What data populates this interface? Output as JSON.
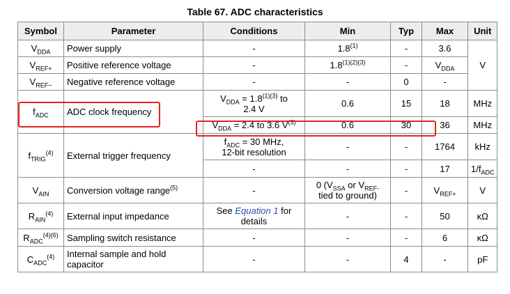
{
  "title": "Table 67. ADC characteristics",
  "headers": {
    "symbol": "Symbol",
    "parameter": "Parameter",
    "conditions": "Conditions",
    "min": "Min",
    "typ": "Typ",
    "max": "Max",
    "unit": "Unit"
  },
  "rows": {
    "vdda": {
      "sym": "V",
      "sub": "DDA",
      "param": "Power supply",
      "cond": "-",
      "min": "1.8",
      "min_sup": "(1)",
      "typ": "-",
      "max": "3.6"
    },
    "vrefp": {
      "sym": "V",
      "sub": "REF+",
      "param": "Positive reference voltage",
      "cond": "-",
      "min": "1.8",
      "min_sup": "(1)(2)(3)",
      "typ": "-",
      "max_sym": "V",
      "max_sub": "DDA"
    },
    "vrefm": {
      "sym": "V",
      "sub": "REF−",
      "param": "Negative reference voltage",
      "cond": "-",
      "min": "-",
      "typ": "0",
      "max": "-"
    },
    "volt_unit": "V",
    "fadc": {
      "sym": "f",
      "sub": "ADC",
      "param": "ADC clock frequency",
      "cond1_sym": "V",
      "cond1_sub": "DDA",
      "cond1_a": " = 1.8",
      "cond1_sup": "(1)(3)",
      "cond1_b": " to",
      "cond1_c": "2.4 V",
      "min1": "0.6",
      "typ1": "15",
      "max1": "18",
      "unit1": "MHz",
      "cond2_sym": "V",
      "cond2_sub": "DDA",
      "cond2_a": " = 2.4 to 3.6 V",
      "cond2_sup": "(3)",
      "min2": "0.6",
      "typ2": "30",
      "max2": "36",
      "unit2": "MHz"
    },
    "ftrig": {
      "sym": "f",
      "sub": "TRIG",
      "sup": "(4)",
      "param": "External trigger frequency",
      "cond1_sym": "f",
      "cond1_sub": "ADC",
      "cond1_a": " = 30 MHz,",
      "cond1_b": "12-bit resolution",
      "min1": "-",
      "typ1": "-",
      "max1": "1764",
      "unit1": "kHz",
      "cond2": "-",
      "min2": "-",
      "typ2": "-",
      "max2": "17",
      "unit2_a": "1/f",
      "unit2_sub": "ADC"
    },
    "vain": {
      "sym": "V",
      "sub": "AIN",
      "param": "Conversion voltage range",
      "param_sup": "(5)",
      "cond": "-",
      "min_a": "0 (V",
      "min_sub1": "SSA",
      "min_b": " or V",
      "min_sub2": "REF-",
      "min_c": "tied to ground)",
      "typ": "-",
      "max_sym": "V",
      "max_sub": "REF+",
      "unit": "V"
    },
    "rain": {
      "sym": "R",
      "sub": "AIN",
      "sup": "(4)",
      "param": "External input impedance",
      "cond_a": "See ",
      "cond_link": "Equation 1",
      "cond_b": " for",
      "cond_c": "details",
      "min": "-",
      "typ": "-",
      "max": "50",
      "unit": "κΩ"
    },
    "radc": {
      "sym": "R",
      "sub": "ADC",
      "sup": "(4)(6)",
      "param": "Sampling switch resistance",
      "cond": "-",
      "min": "-",
      "typ": "-",
      "max": "6",
      "unit": "κΩ"
    },
    "cadc": {
      "sym": "C",
      "sub": "ADC",
      "sup": "(4)",
      "param_a": "Internal sample and hold",
      "param_b": "capacitor",
      "cond": "-",
      "min": "-",
      "typ": "4",
      "max": "-",
      "unit": "pF"
    }
  },
  "highlight_color": "#e8211c"
}
